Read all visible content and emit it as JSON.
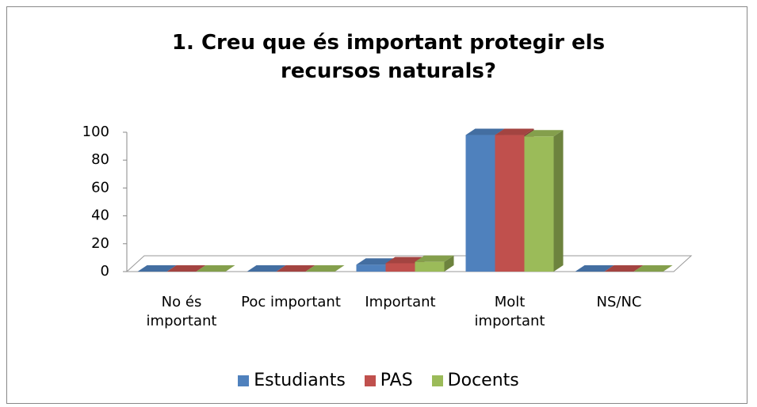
{
  "chart_data": {
    "type": "bar3d",
    "title": "1. Creu que és important protegir els recursos naturals?",
    "categories": [
      "No és important",
      "Poc important",
      "Important",
      "Molt important",
      "NS/NC"
    ],
    "series": [
      {
        "name": "Estudiants",
        "color": "#4f81bd",
        "values": [
          0,
          0,
          5,
          98,
          0
        ]
      },
      {
        "name": "PAS",
        "color": "#c0504d",
        "values": [
          0,
          0,
          6,
          98,
          0
        ]
      },
      {
        "name": "Docents",
        "color": "#9bbb59",
        "values": [
          0,
          0,
          7,
          97,
          0
        ]
      }
    ],
    "ylim": [
      0,
      100
    ],
    "yticks": [
      0,
      20,
      40,
      60,
      80,
      100
    ],
    "legend": "bottom"
  }
}
